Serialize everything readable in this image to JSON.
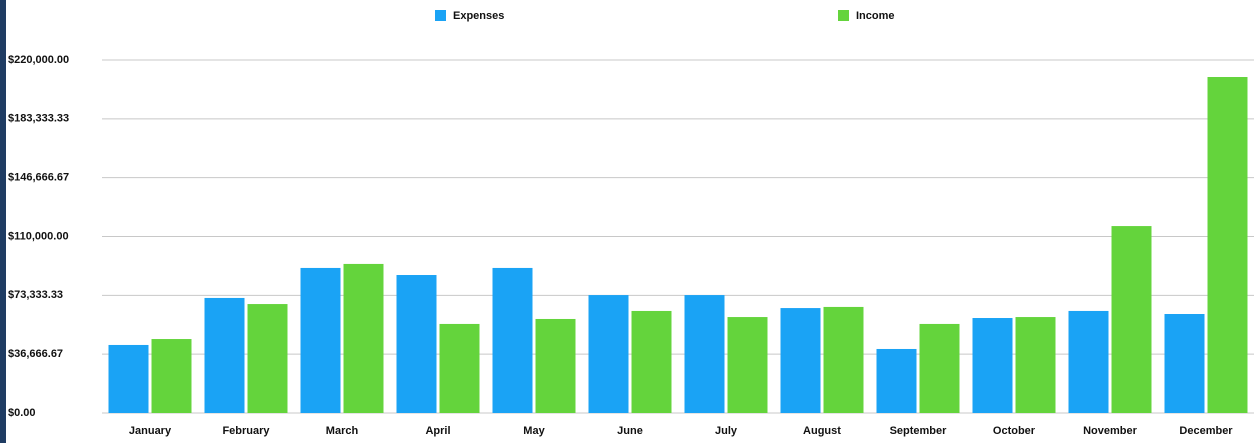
{
  "chart_data": {
    "type": "bar",
    "categories": [
      "January",
      "February",
      "March",
      "April",
      "May",
      "June",
      "July",
      "August",
      "September",
      "October",
      "November",
      "December"
    ],
    "series": [
      {
        "name": "Expenses",
        "color": "#1aa3f5",
        "values": [
          42400,
          71700,
          90400,
          86000,
          90400,
          73500,
          73500,
          65400,
          39900,
          59200,
          63600,
          61700
        ]
      },
      {
        "name": "Income",
        "color": "#64d43c",
        "values": [
          46100,
          67900,
          92900,
          55500,
          58600,
          63600,
          59800,
          66100,
          55500,
          59800,
          116500,
          209400
        ]
      }
    ],
    "ylim": [
      0,
      220000
    ],
    "yticks": [
      {
        "value": 0,
        "label": "$0.00"
      },
      {
        "value": 36666.67,
        "label": "$36,666.67"
      },
      {
        "value": 73333.33,
        "label": "$73,333.33"
      },
      {
        "value": 110000,
        "label": "$110,000.00"
      },
      {
        "value": 146666.67,
        "label": "$146,666.67"
      },
      {
        "value": 183333.33,
        "label": "$183,333.33"
      },
      {
        "value": 220000,
        "label": "$220,000.00"
      }
    ],
    "grid": true,
    "legend": "top"
  }
}
